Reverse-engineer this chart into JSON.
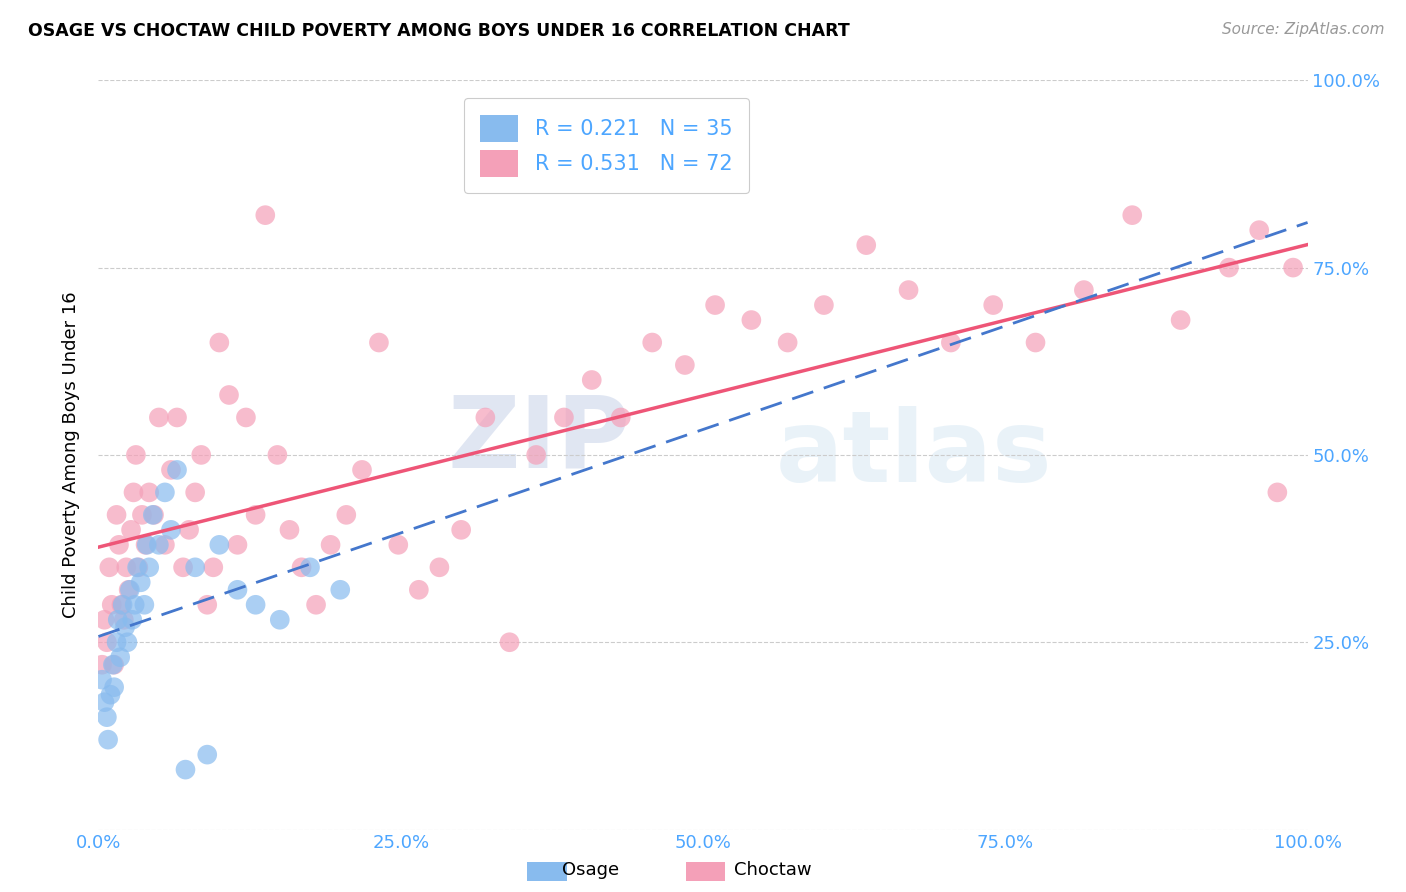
{
  "title": "OSAGE VS CHOCTAW CHILD POVERTY AMONG BOYS UNDER 16 CORRELATION CHART",
  "source": "Source: ZipAtlas.com",
  "ylabel": "Child Poverty Among Boys Under 16",
  "xlim": [
    0,
    1.0
  ],
  "ylim": [
    0,
    1.0
  ],
  "xticks": [
    0.0,
    0.25,
    0.5,
    0.75,
    1.0
  ],
  "yticks": [
    0.0,
    0.25,
    0.5,
    0.75,
    1.0
  ],
  "xticklabels": [
    "0.0%",
    "25.0%",
    "50.0%",
    "75.0%",
    "100.0%"
  ],
  "yticklabels": [
    "",
    "25.0%",
    "50.0%",
    "75.0%",
    "100.0%"
  ],
  "osage_color": "#88BBEE",
  "choctaw_color": "#F4A0B8",
  "osage_line_color": "#4477CC",
  "choctaw_line_color": "#EE5577",
  "dashed_line_color": "#AABBCC",
  "legend_label_osage": "R = 0.221   N = 35",
  "legend_label_choctaw": "R = 0.531   N = 72",
  "watermark_zip": "ZIP",
  "watermark_atlas": "atlas",
  "background_color": "#ffffff",
  "osage_x": [
    0.003,
    0.005,
    0.007,
    0.008,
    0.01,
    0.012,
    0.013,
    0.015,
    0.016,
    0.018,
    0.02,
    0.022,
    0.024,
    0.026,
    0.028,
    0.03,
    0.032,
    0.035,
    0.038,
    0.04,
    0.042,
    0.045,
    0.05,
    0.055,
    0.06,
    0.065,
    0.072,
    0.08,
    0.09,
    0.1,
    0.115,
    0.13,
    0.15,
    0.175,
    0.2
  ],
  "osage_y": [
    0.2,
    0.17,
    0.15,
    0.12,
    0.18,
    0.22,
    0.19,
    0.25,
    0.28,
    0.23,
    0.3,
    0.27,
    0.25,
    0.32,
    0.28,
    0.3,
    0.35,
    0.33,
    0.3,
    0.38,
    0.35,
    0.42,
    0.38,
    0.45,
    0.4,
    0.48,
    0.08,
    0.35,
    0.1,
    0.38,
    0.32,
    0.3,
    0.28,
    0.35,
    0.32
  ],
  "choctaw_x": [
    0.003,
    0.005,
    0.007,
    0.009,
    0.011,
    0.013,
    0.015,
    0.017,
    0.019,
    0.021,
    0.023,
    0.025,
    0.027,
    0.029,
    0.031,
    0.033,
    0.036,
    0.039,
    0.042,
    0.046,
    0.05,
    0.055,
    0.06,
    0.065,
    0.07,
    0.075,
    0.08,
    0.085,
    0.09,
    0.095,
    0.1,
    0.108,
    0.115,
    0.122,
    0.13,
    0.138,
    0.148,
    0.158,
    0.168,
    0.18,
    0.192,
    0.205,
    0.218,
    0.232,
    0.248,
    0.265,
    0.282,
    0.3,
    0.32,
    0.34,
    0.362,
    0.385,
    0.408,
    0.432,
    0.458,
    0.485,
    0.51,
    0.54,
    0.57,
    0.6,
    0.635,
    0.67,
    0.705,
    0.74,
    0.775,
    0.815,
    0.855,
    0.895,
    0.935,
    0.96,
    0.975,
    0.988
  ],
  "choctaw_y": [
    0.22,
    0.28,
    0.25,
    0.35,
    0.3,
    0.22,
    0.42,
    0.38,
    0.3,
    0.28,
    0.35,
    0.32,
    0.4,
    0.45,
    0.5,
    0.35,
    0.42,
    0.38,
    0.45,
    0.42,
    0.55,
    0.38,
    0.48,
    0.55,
    0.35,
    0.4,
    0.45,
    0.5,
    0.3,
    0.35,
    0.65,
    0.58,
    0.38,
    0.55,
    0.42,
    0.82,
    0.5,
    0.4,
    0.35,
    0.3,
    0.38,
    0.42,
    0.48,
    0.65,
    0.38,
    0.32,
    0.35,
    0.4,
    0.55,
    0.25,
    0.5,
    0.55,
    0.6,
    0.55,
    0.65,
    0.62,
    0.7,
    0.68,
    0.65,
    0.7,
    0.78,
    0.72,
    0.65,
    0.7,
    0.65,
    0.72,
    0.82,
    0.68,
    0.75,
    0.8,
    0.45,
    0.75
  ],
  "tick_color": "#4DA6FF",
  "grid_color": "#CCCCCC"
}
